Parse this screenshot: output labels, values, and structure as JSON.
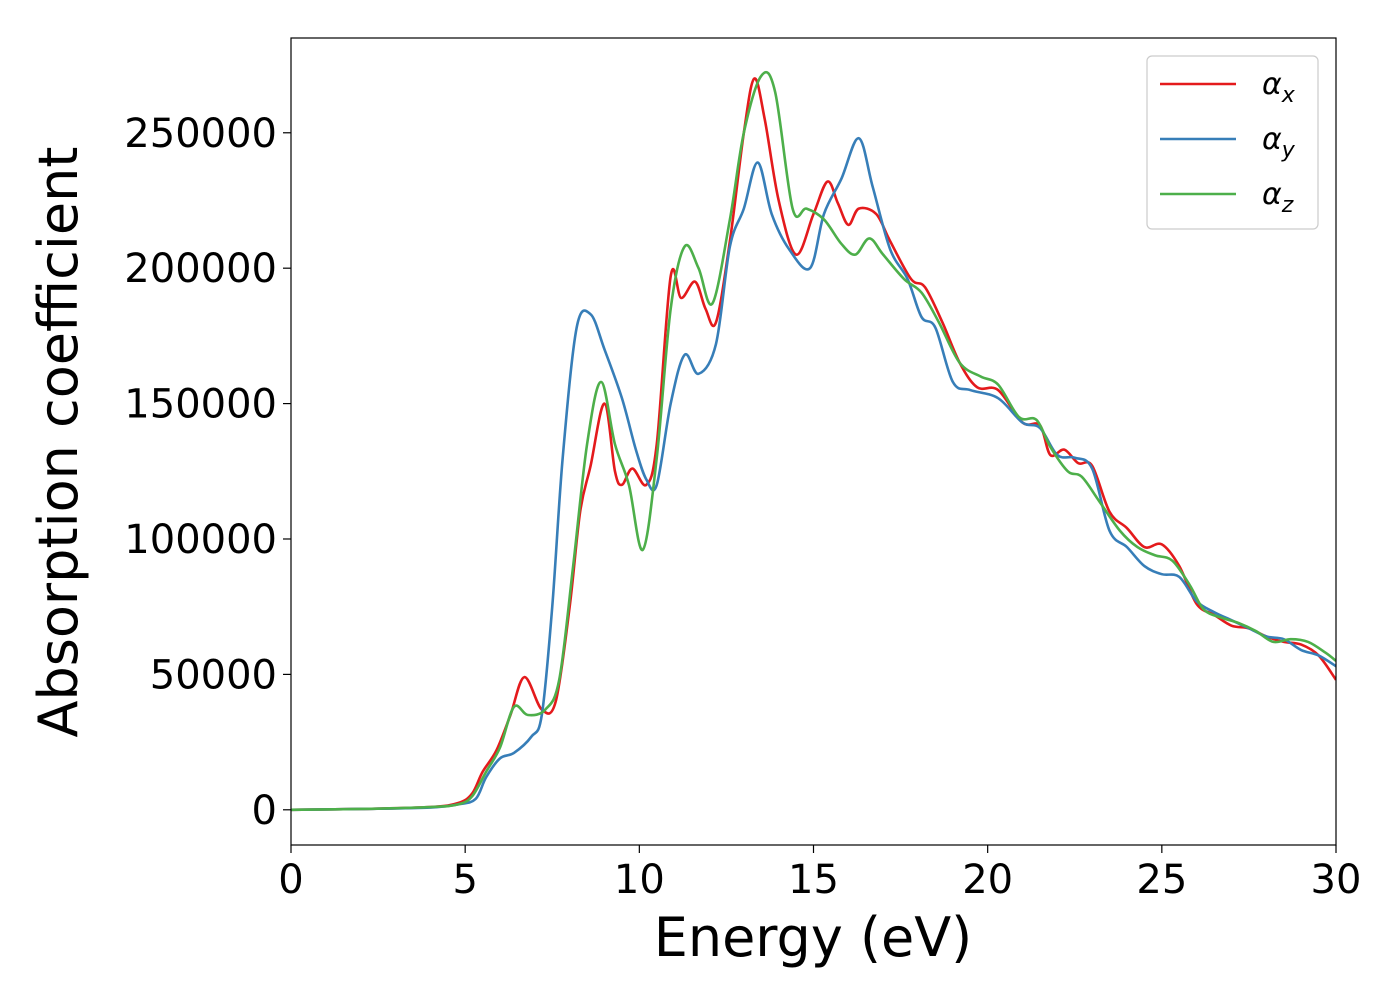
{
  "chart_data": {
    "type": "line",
    "xlabel": "Energy (eV)",
    "ylabel": "Absorption coefficient",
    "xlim": [
      0,
      30
    ],
    "ylim": [
      -13000,
      285000
    ],
    "x_ticks": [
      0,
      5,
      10,
      15,
      20,
      25,
      30
    ],
    "x_tick_labels": [
      "0",
      "5",
      "10",
      "15",
      "20",
      "25",
      "30"
    ],
    "y_ticks": [
      0,
      50000,
      100000,
      150000,
      200000,
      250000
    ],
    "y_tick_labels": [
      "0",
      "50000",
      "100000",
      "150000",
      "200000",
      "250000"
    ],
    "grid": false,
    "legend_position": "upper right",
    "series": [
      {
        "name": "α",
        "subscript": "x",
        "color": "#e41a1c",
        "points": [
          [
            0,
            0
          ],
          [
            2,
            300
          ],
          [
            4,
            1000
          ],
          [
            4.8,
            2500
          ],
          [
            5.2,
            6000
          ],
          [
            5.5,
            14000
          ],
          [
            5.9,
            22000
          ],
          [
            6.3,
            35000
          ],
          [
            6.7,
            49000
          ],
          [
            7.2,
            37000
          ],
          [
            7.6,
            40000
          ],
          [
            8,
            75000
          ],
          [
            8.3,
            110000
          ],
          [
            8.6,
            127000
          ],
          [
            9,
            150000
          ],
          [
            9.3,
            125000
          ],
          [
            9.5,
            120000
          ],
          [
            9.8,
            126000
          ],
          [
            10.2,
            120000
          ],
          [
            10.5,
            135000
          ],
          [
            10.9,
            197000
          ],
          [
            11.2,
            189000
          ],
          [
            11.6,
            195000
          ],
          [
            11.9,
            185000
          ],
          [
            12.2,
            180000
          ],
          [
            12.6,
            210000
          ],
          [
            13,
            250000
          ],
          [
            13.3,
            270000
          ],
          [
            13.6,
            255000
          ],
          [
            14,
            225000
          ],
          [
            14.5,
            205000
          ],
          [
            15,
            220000
          ],
          [
            15.4,
            232000
          ],
          [
            15.7,
            224000
          ],
          [
            16,
            216000
          ],
          [
            16.3,
            222000
          ],
          [
            16.8,
            220000
          ],
          [
            17.2,
            210000
          ],
          [
            17.8,
            196000
          ],
          [
            18.2,
            193000
          ],
          [
            18.7,
            180000
          ],
          [
            19.2,
            165000
          ],
          [
            19.7,
            156000
          ],
          [
            20.3,
            155000
          ],
          [
            21,
            143000
          ],
          [
            21.5,
            142000
          ],
          [
            21.8,
            131000
          ],
          [
            22.2,
            133000
          ],
          [
            22.6,
            128000
          ],
          [
            23,
            127000
          ],
          [
            23.5,
            110000
          ],
          [
            24,
            104000
          ],
          [
            24.5,
            97000
          ],
          [
            25,
            98000
          ],
          [
            25.5,
            90000
          ],
          [
            26,
            76000
          ],
          [
            26.5,
            72000
          ],
          [
            27,
            68000
          ],
          [
            27.5,
            67000
          ],
          [
            28,
            64000
          ],
          [
            28.5,
            62000
          ],
          [
            29,
            61000
          ],
          [
            29.5,
            57000
          ],
          [
            30,
            48000
          ]
        ]
      },
      {
        "name": "α",
        "subscript": "y",
        "color": "#377eb8",
        "points": [
          [
            0,
            0
          ],
          [
            2,
            300
          ],
          [
            4,
            800
          ],
          [
            4.8,
            2000
          ],
          [
            5.3,
            4000
          ],
          [
            5.6,
            12000
          ],
          [
            6,
            19000
          ],
          [
            6.4,
            21000
          ],
          [
            6.9,
            27000
          ],
          [
            7.2,
            35000
          ],
          [
            7.5,
            75000
          ],
          [
            7.8,
            130000
          ],
          [
            8.2,
            178000
          ],
          [
            8.6,
            183000
          ],
          [
            9,
            170000
          ],
          [
            9.5,
            152000
          ],
          [
            9.9,
            133000
          ],
          [
            10.2,
            122000
          ],
          [
            10.5,
            120000
          ],
          [
            10.9,
            150000
          ],
          [
            11.3,
            168000
          ],
          [
            11.7,
            161000
          ],
          [
            12.2,
            172000
          ],
          [
            12.6,
            208000
          ],
          [
            13,
            222000
          ],
          [
            13.4,
            239000
          ],
          [
            13.8,
            220000
          ],
          [
            14.3,
            207000
          ],
          [
            14.9,
            200000
          ],
          [
            15.3,
            220000
          ],
          [
            15.8,
            233000
          ],
          [
            16.3,
            248000
          ],
          [
            16.7,
            230000
          ],
          [
            17.2,
            207000
          ],
          [
            17.7,
            196000
          ],
          [
            18.1,
            182000
          ],
          [
            18.5,
            178000
          ],
          [
            19,
            158000
          ],
          [
            19.5,
            155000
          ],
          [
            20.3,
            152000
          ],
          [
            21,
            143000
          ],
          [
            21.5,
            141000
          ],
          [
            22,
            131000
          ],
          [
            22.5,
            130000
          ],
          [
            23,
            126000
          ],
          [
            23.5,
            103000
          ],
          [
            24,
            97000
          ],
          [
            24.5,
            90000
          ],
          [
            25,
            87000
          ],
          [
            25.5,
            86000
          ],
          [
            26,
            77000
          ],
          [
            26.5,
            73000
          ],
          [
            27,
            70000
          ],
          [
            27.5,
            67000
          ],
          [
            28,
            64000
          ],
          [
            28.5,
            63000
          ],
          [
            29,
            59000
          ],
          [
            29.5,
            57000
          ],
          [
            30,
            53000
          ]
        ]
      },
      {
        "name": "α",
        "subscript": "z",
        "color": "#4daf4a",
        "points": [
          [
            0,
            0
          ],
          [
            2,
            300
          ],
          [
            4,
            1000
          ],
          [
            4.8,
            2000
          ],
          [
            5.2,
            5000
          ],
          [
            5.6,
            14000
          ],
          [
            6,
            23000
          ],
          [
            6.4,
            38000
          ],
          [
            6.8,
            35000
          ],
          [
            7.3,
            37000
          ],
          [
            7.7,
            48000
          ],
          [
            8.1,
            90000
          ],
          [
            8.5,
            135000
          ],
          [
            8.9,
            158000
          ],
          [
            9.3,
            135000
          ],
          [
            9.7,
            120000
          ],
          [
            10.1,
            96000
          ],
          [
            10.5,
            130000
          ],
          [
            10.9,
            185000
          ],
          [
            11.3,
            208000
          ],
          [
            11.7,
            200000
          ],
          [
            12.1,
            187000
          ],
          [
            12.6,
            218000
          ],
          [
            13,
            250000
          ],
          [
            13.5,
            271000
          ],
          [
            13.9,
            265000
          ],
          [
            14.4,
            222000
          ],
          [
            14.8,
            222000
          ],
          [
            15.3,
            218000
          ],
          [
            15.8,
            209000
          ],
          [
            16.2,
            205000
          ],
          [
            16.6,
            211000
          ],
          [
            17,
            205000
          ],
          [
            17.6,
            196000
          ],
          [
            18.1,
            191000
          ],
          [
            18.6,
            180000
          ],
          [
            19.2,
            165000
          ],
          [
            19.8,
            160000
          ],
          [
            20.3,
            157000
          ],
          [
            20.9,
            145000
          ],
          [
            21.4,
            144000
          ],
          [
            21.8,
            134000
          ],
          [
            22.3,
            125000
          ],
          [
            22.7,
            123000
          ],
          [
            23.2,
            114000
          ],
          [
            23.8,
            103000
          ],
          [
            24.3,
            97000
          ],
          [
            24.8,
            94000
          ],
          [
            25.3,
            92000
          ],
          [
            25.8,
            83000
          ],
          [
            26.2,
            74000
          ],
          [
            26.7,
            71000
          ],
          [
            27.2,
            69000
          ],
          [
            27.7,
            66000
          ],
          [
            28.2,
            62000
          ],
          [
            28.7,
            63000
          ],
          [
            29.2,
            62000
          ],
          [
            29.7,
            58000
          ],
          [
            30,
            55000
          ]
        ]
      }
    ]
  }
}
